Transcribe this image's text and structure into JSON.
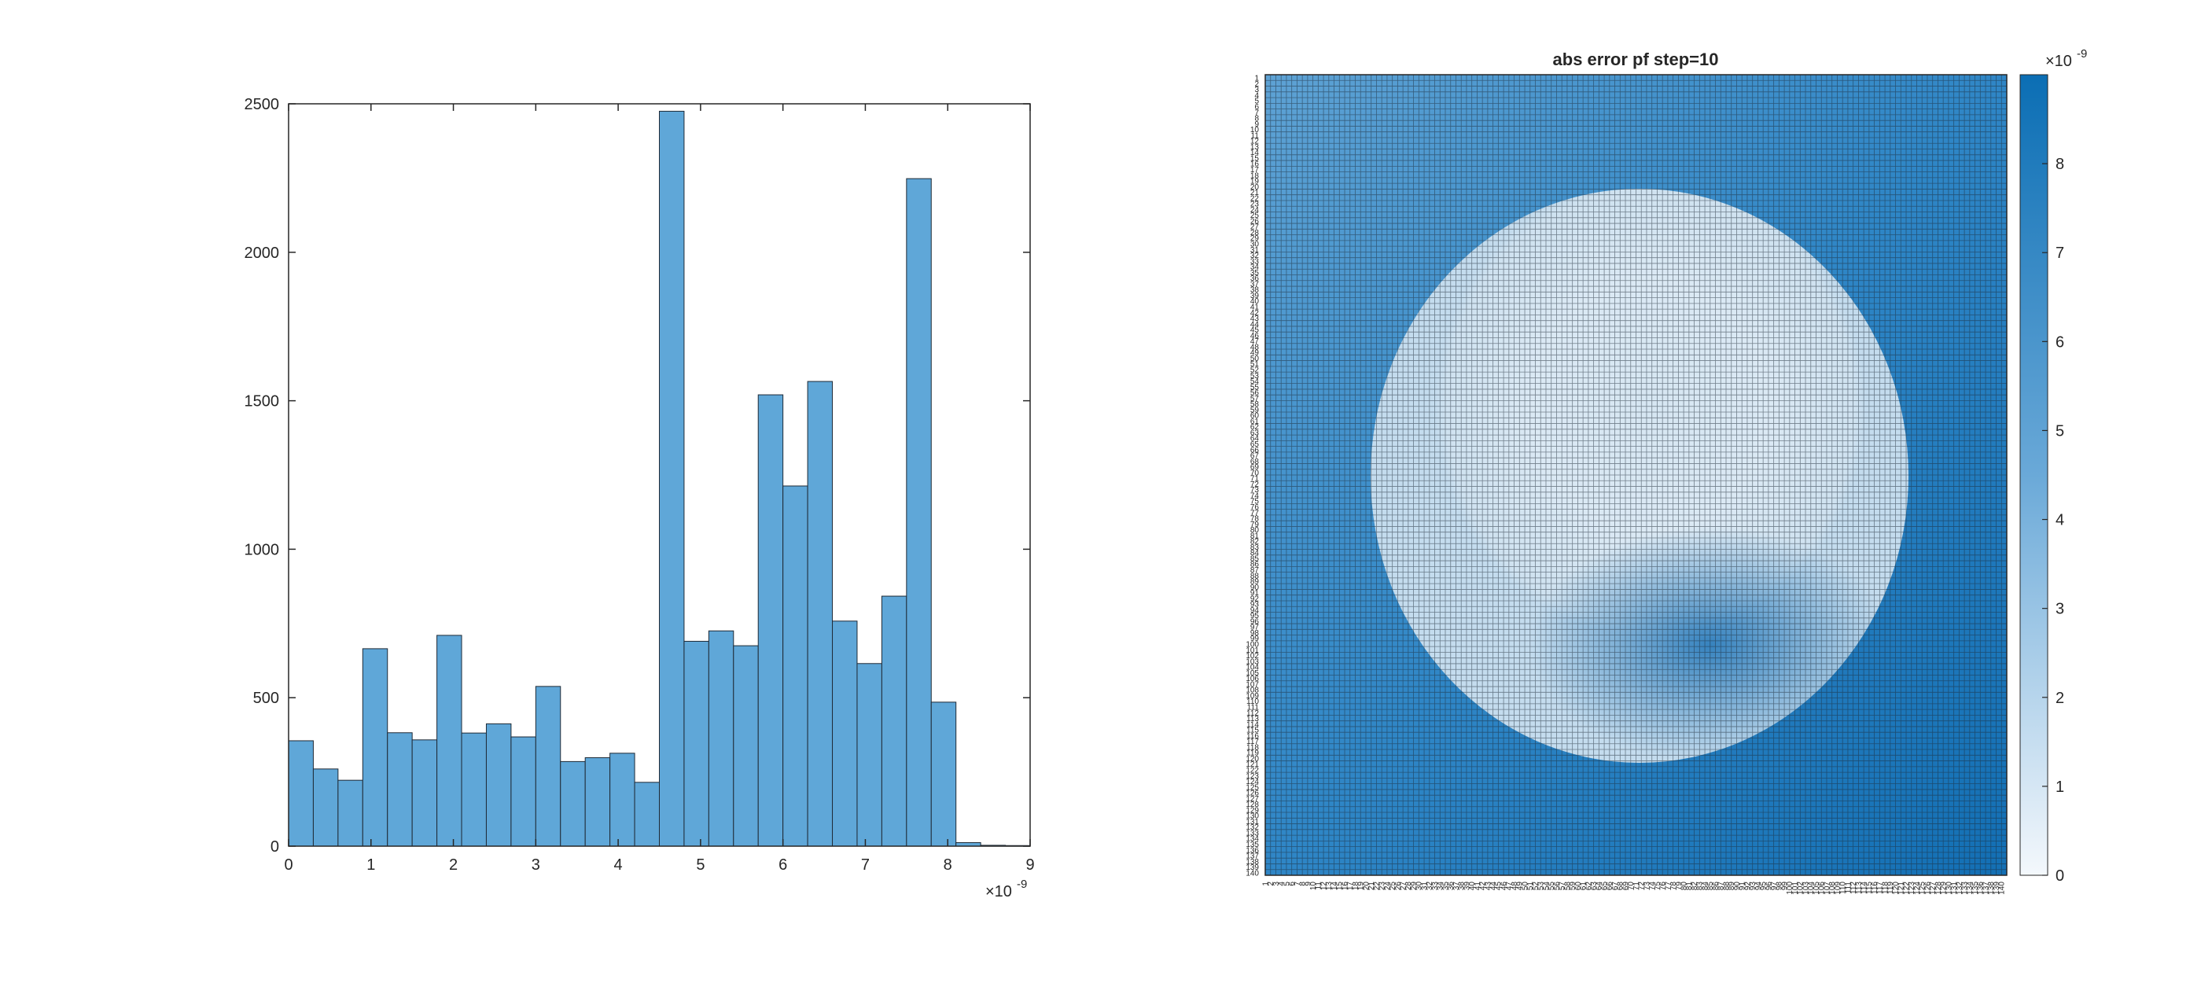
{
  "chart_data": [
    {
      "type": "bar",
      "subtype": "histogram",
      "title": "",
      "xlabel": "",
      "ylabel": "",
      "bin_width": 3e-10,
      "bin_edges_start": 0,
      "values": [
        355,
        260,
        222,
        665,
        382,
        358,
        710,
        381,
        412,
        368,
        538,
        285,
        298,
        313,
        215,
        2475,
        690,
        725,
        675,
        1520,
        1213,
        1565,
        758,
        615,
        842,
        2248,
        485,
        12,
        3,
        2
      ],
      "xlim": [
        0,
        9e-09
      ],
      "ylim": [
        0,
        2500
      ],
      "xticks": [
        0,
        1,
        2,
        3,
        4,
        5,
        6,
        7,
        8,
        9
      ],
      "yticks": [
        0,
        500,
        1000,
        1500,
        2000,
        2500
      ],
      "x_exponent": {
        "base": "×10",
        "exp": "-9"
      },
      "color": "#5fa7d8",
      "edge_color": "#1f2a36",
      "grid": false
    },
    {
      "type": "heatmap",
      "title": "abs error pf step=10",
      "rows": 140,
      "cols": 140,
      "row_labels_first": "1",
      "row_labels_last": "140",
      "col_labels_first": "1",
      "col_labels_last": "140",
      "clim": [
        0,
        9e-09
      ],
      "colorbar_ticks": [
        0,
        1,
        2,
        3,
        4,
        5,
        6,
        7,
        8
      ],
      "colorbar_exponent": {
        "base": "×10",
        "exp": "-9"
      },
      "colormap": {
        "low": "#f4f8fc",
        "high": "#0b6eb4"
      },
      "cell_edge_color": "#1e2a36"
    }
  ]
}
